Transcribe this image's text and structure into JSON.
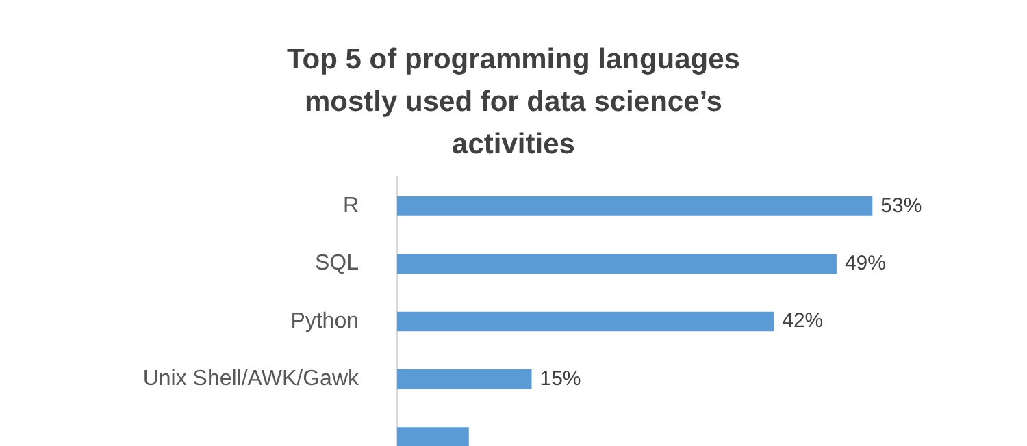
{
  "chart_data": {
    "type": "bar",
    "orientation": "horizontal",
    "title": "Top 5 of programming languages mostly used for data science’s activities",
    "categories": [
      "R",
      "SQL",
      "Python",
      "Unix Shell/AWK/Gawk",
      null
    ],
    "values": [
      53,
      49,
      42,
      15,
      8
    ],
    "value_labels": [
      "53%",
      "49%",
      "42%",
      "15%",
      null
    ],
    "color": "#5b9bd5"
  }
}
